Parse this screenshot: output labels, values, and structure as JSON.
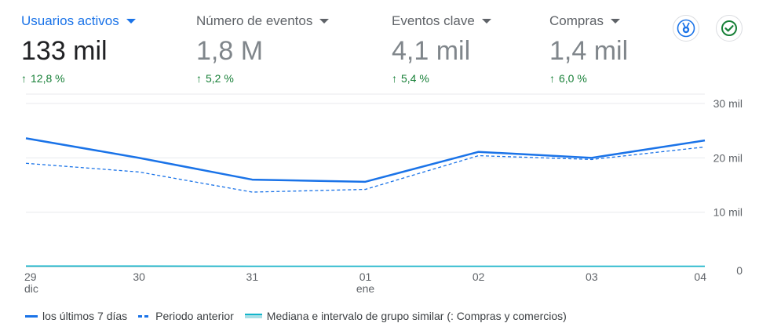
{
  "metrics": [
    {
      "label": "Usuarios activos",
      "value": "133 mil",
      "delta": "12,8 %",
      "active": true
    },
    {
      "label": "Número de eventos",
      "value": "1,8 M",
      "delta": "5,2 %",
      "active": false
    },
    {
      "label": "Eventos clave",
      "value": "4,1 mil",
      "delta": "5,4 %",
      "active": false
    },
    {
      "label": "Compras",
      "value": "1,4 mil",
      "delta": "6,0 %",
      "active": false
    }
  ],
  "icons": {
    "insights": "insights-badge-icon",
    "check": "check-circle-icon"
  },
  "colors": {
    "primary": "#1a73e8",
    "benchmark": "#12b5cb",
    "positive": "#188038",
    "grid": "#e8eaed"
  },
  "legend": {
    "current": "los últimos 7 días",
    "previous": "Periodo anterior",
    "benchmark": "Mediana e intervalo de grupo similar (: Compras y comercios)"
  },
  "chart_data": {
    "type": "line",
    "categories": [
      "29\ndic",
      "30",
      "31",
      "01\nene",
      "02",
      "03",
      "04"
    ],
    "x_tick_labels": [
      [
        "29",
        "dic"
      ],
      [
        "30"
      ],
      [
        "31"
      ],
      [
        "01",
        "ene"
      ],
      [
        "02"
      ],
      [
        "03"
      ],
      [
        "04"
      ]
    ],
    "y_tick_labels": [
      "0",
      "10 mil",
      "20 mil",
      "30 mil"
    ],
    "ylim": [
      0,
      30000
    ],
    "y_axis_position": "right",
    "grid": true,
    "legend_position": "bottom-left",
    "series": [
      {
        "name": "los últimos 7 días",
        "style": "solid",
        "values": [
          23600,
          20000,
          16000,
          15600,
          21100,
          20000,
          23200
        ]
      },
      {
        "name": "Periodo anterior",
        "style": "dashed",
        "values": [
          19000,
          17400,
          13700,
          14200,
          20400,
          19700,
          22000
        ]
      },
      {
        "name": "Mediana e intervalo de grupo similar (: Compras y comercios)",
        "style": "band",
        "values": [
          100,
          100,
          60,
          60,
          60,
          60,
          60
        ]
      }
    ]
  }
}
